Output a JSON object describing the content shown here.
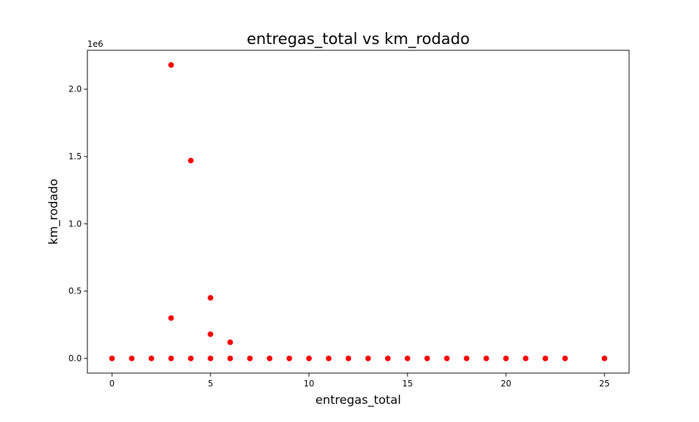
{
  "chart_data": {
    "type": "scatter",
    "title": "entregas_total vs km_rodado",
    "xlabel": "entregas_total",
    "ylabel": "km_rodado",
    "y_offset_label": "1e6",
    "xlim": [
      -1.25,
      26.25
    ],
    "ylim": [
      -0.109,
      2.289
    ],
    "x_ticks": [
      0,
      5,
      10,
      15,
      20,
      25
    ],
    "y_ticks": [
      0.0,
      0.5,
      1.0,
      1.5,
      2.0
    ],
    "x_tick_labels": [
      "0",
      "5",
      "10",
      "15",
      "20",
      "25"
    ],
    "y_tick_labels": [
      "0.0",
      "0.5",
      "1.0",
      "1.5",
      "2.0"
    ],
    "grid": false,
    "legend": "none",
    "marker_color": "#ff0000",
    "points": [
      {
        "x": 0,
        "y": 0.0
      },
      {
        "x": 1,
        "y": 0.0
      },
      {
        "x": 2,
        "y": 0.0
      },
      {
        "x": 3,
        "y": 0.0
      },
      {
        "x": 3,
        "y": 0.3
      },
      {
        "x": 3,
        "y": 2.18
      },
      {
        "x": 4,
        "y": 0.0
      },
      {
        "x": 4,
        "y": 1.47
      },
      {
        "x": 5,
        "y": 0.0
      },
      {
        "x": 5,
        "y": 0.18
      },
      {
        "x": 5,
        "y": 0.45
      },
      {
        "x": 6,
        "y": 0.0
      },
      {
        "x": 6,
        "y": 0.12
      },
      {
        "x": 7,
        "y": 0.0
      },
      {
        "x": 8,
        "y": 0.0
      },
      {
        "x": 9,
        "y": 0.0
      },
      {
        "x": 10,
        "y": 0.0
      },
      {
        "x": 11,
        "y": 0.0
      },
      {
        "x": 12,
        "y": 0.0
      },
      {
        "x": 13,
        "y": 0.0
      },
      {
        "x": 14,
        "y": 0.0
      },
      {
        "x": 15,
        "y": 0.0
      },
      {
        "x": 16,
        "y": 0.0
      },
      {
        "x": 17,
        "y": 0.0
      },
      {
        "x": 18,
        "y": 0.0
      },
      {
        "x": 19,
        "y": 0.0
      },
      {
        "x": 20,
        "y": 0.0
      },
      {
        "x": 21,
        "y": 0.0
      },
      {
        "x": 22,
        "y": 0.0
      },
      {
        "x": 23,
        "y": 0.0
      },
      {
        "x": 25,
        "y": 0.0
      }
    ]
  }
}
